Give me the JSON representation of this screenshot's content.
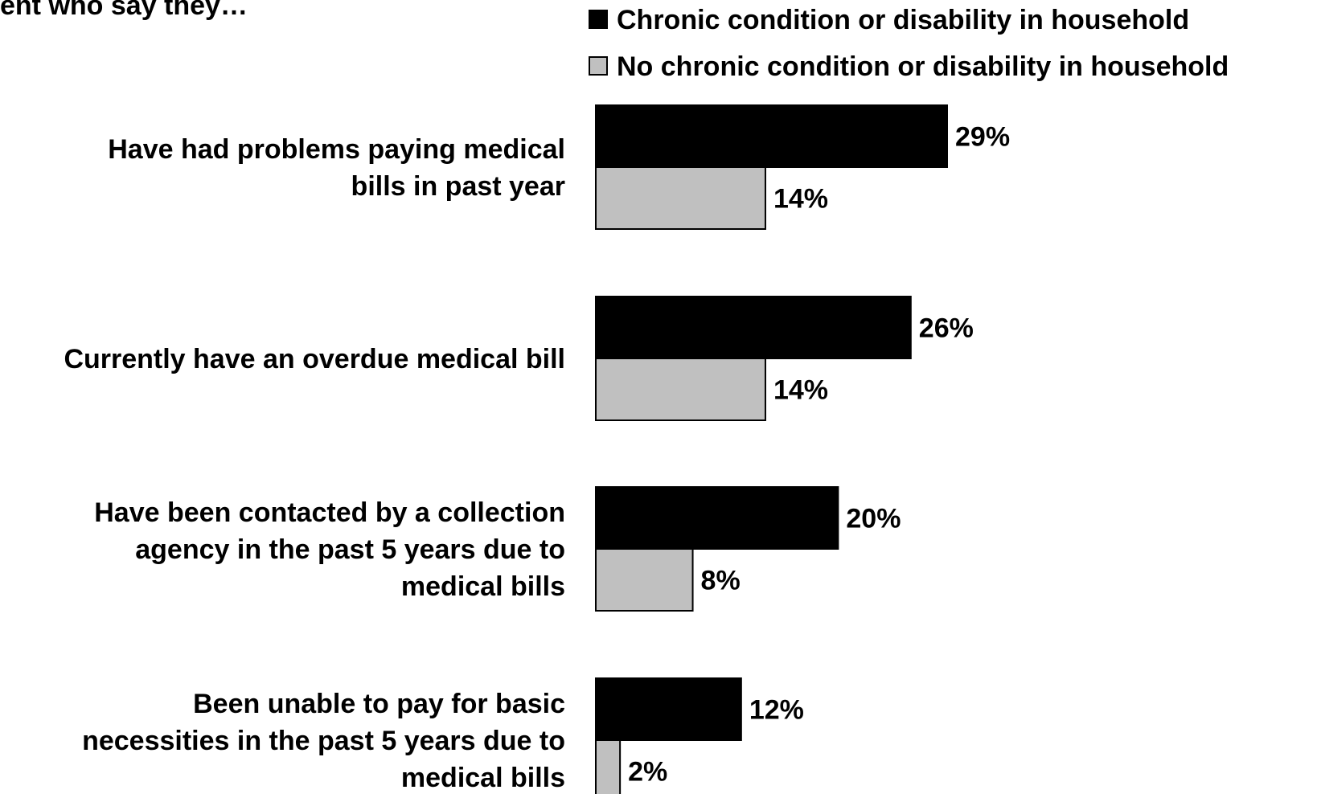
{
  "chart_data": {
    "type": "bar",
    "orientation": "horizontal",
    "title": "ent who say they…",
    "categories": [
      [
        "Have had problems paying medical",
        "bills in past year"
      ],
      [
        "Currently have an overdue medical bill"
      ],
      [
        "Have been contacted by a collection",
        "agency in the past 5 years due to",
        "medical bills"
      ],
      [
        "Been unable to pay for basic",
        "necessities in the past 5 years due to",
        "medical bills"
      ]
    ],
    "series": [
      {
        "name": "Chronic condition or disability in household",
        "color": "#000000",
        "values": [
          29,
          26,
          20,
          12
        ],
        "labels": [
          "29%",
          "26%",
          "20%",
          "12%"
        ]
      },
      {
        "name": "No chronic condition or disability in household",
        "color": "#c0c0c0",
        "values": [
          14,
          14,
          8,
          2
        ],
        "labels": [
          "14%",
          "14%",
          "8%",
          "2%"
        ]
      }
    ],
    "value_unit": "%",
    "xlim": [
      0,
      100
    ],
    "grid": false,
    "legend_position": "top-right"
  }
}
